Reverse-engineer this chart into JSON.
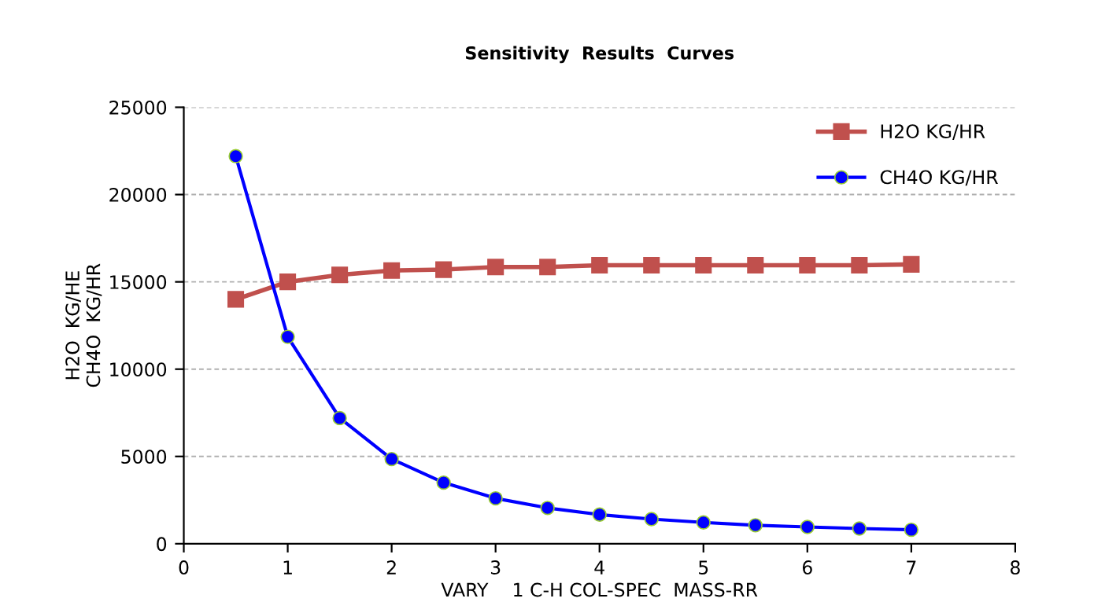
{
  "chart_data": {
    "type": "line",
    "title": "Sensitivity  Results  Curves",
    "xlabel": "VARY    1 C-H COL-SPEC  MASS-RR",
    "ylabel": "H2O  KG/HE\nCH4O  KG/HR",
    "x": [
      0.5,
      1,
      1.5,
      2,
      2.5,
      3,
      3.5,
      4,
      4.5,
      5,
      5.5,
      6,
      6.5,
      7
    ],
    "series": [
      {
        "name": "H2O KG/HR",
        "color": "#c0504d",
        "marker": "square",
        "values": [
          14000,
          15000,
          15400,
          15650,
          15700,
          15850,
          15850,
          15950,
          15950,
          15950,
          15950,
          15950,
          15950,
          16000
        ]
      },
      {
        "name": "CH4O KG/HR",
        "color": "#0000ff",
        "marker": "circle",
        "values": [
          22200,
          11850,
          7200,
          4850,
          3500,
          2600,
          2050,
          1670,
          1410,
          1220,
          1060,
          960,
          870,
          800
        ]
      }
    ],
    "xlim": [
      0,
      8
    ],
    "xticks": [
      0,
      1,
      2,
      3,
      4,
      5,
      6,
      7,
      8
    ],
    "ylim": [
      0,
      25000
    ],
    "yticks": [
      0,
      5000,
      10000,
      15000,
      20000,
      25000
    ],
    "grid": "y",
    "legend": "top right"
  }
}
